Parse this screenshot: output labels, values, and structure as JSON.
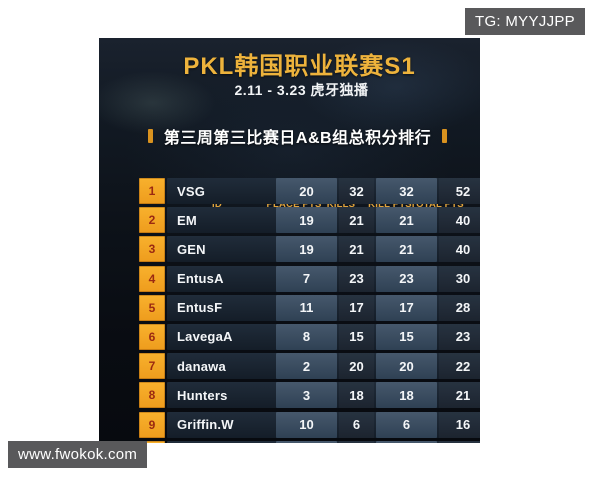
{
  "overlays": {
    "tg_label": "TG: MYYJJPP",
    "url_label": "www.fwokok.com"
  },
  "poster": {
    "title": "PKL韩国职业联赛S1",
    "date_line": "2.11 - 3.23 虎牙独播",
    "section_title": "第三周第三比赛日A&B组总积分排行"
  },
  "table": {
    "columns": [
      "ID",
      "PLACE PTS",
      "KILLS",
      "KILL PTS",
      "TOTAL PTS"
    ],
    "rows": [
      {
        "rank": "1",
        "id": "VSG",
        "place_pts": "20",
        "kills": "32",
        "kill_pts": "32",
        "total_pts": "52"
      },
      {
        "rank": "2",
        "id": "EM",
        "place_pts": "19",
        "kills": "21",
        "kill_pts": "21",
        "total_pts": "40"
      },
      {
        "rank": "3",
        "id": "GEN",
        "place_pts": "19",
        "kills": "21",
        "kill_pts": "21",
        "total_pts": "40"
      },
      {
        "rank": "4",
        "id": "EntusA",
        "place_pts": "7",
        "kills": "23",
        "kill_pts": "23",
        "total_pts": "30"
      },
      {
        "rank": "5",
        "id": "EntusF",
        "place_pts": "11",
        "kills": "17",
        "kill_pts": "17",
        "total_pts": "28"
      },
      {
        "rank": "6",
        "id": "LavegaA",
        "place_pts": "8",
        "kills": "15",
        "kill_pts": "15",
        "total_pts": "23"
      },
      {
        "rank": "7",
        "id": "danawa",
        "place_pts": "2",
        "kills": "20",
        "kill_pts": "20",
        "total_pts": "22"
      },
      {
        "rank": "8",
        "id": "Hunters",
        "place_pts": "3",
        "kills": "18",
        "kill_pts": "18",
        "total_pts": "21"
      },
      {
        "rank": "9",
        "id": "Griffin.W",
        "place_pts": "10",
        "kills": "6",
        "kill_pts": "6",
        "total_pts": "16"
      }
    ]
  },
  "colors": {
    "accent_orange": "#f5a623",
    "rank_number": "#9b2911",
    "header_text": "#e0a33c",
    "title_gold": "#eeb33c",
    "row_dark": "#18222e",
    "cell_light": "#3c4f63",
    "badge_gray": "#59595b",
    "page_bg": "#ffffff"
  }
}
